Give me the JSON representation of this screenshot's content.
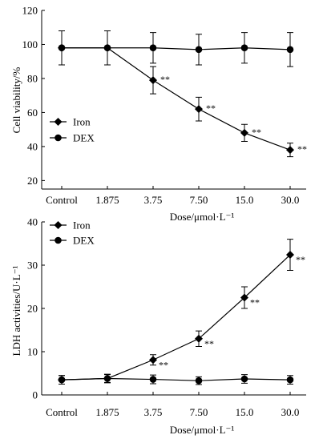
{
  "chart_data": [
    {
      "type": "line",
      "categories": [
        "Control",
        "1.875",
        "3.75",
        "7.50",
        "15.0",
        "30.0"
      ],
      "series": [
        {
          "name": "Iron",
          "marker": "diamond",
          "color": "#000000",
          "values": [
            98,
            98,
            79,
            62,
            48,
            38
          ],
          "errors": [
            10,
            10,
            8,
            7,
            5,
            4
          ]
        },
        {
          "name": "DEX",
          "marker": "circle",
          "color": "#000000",
          "values": [
            98,
            98,
            98,
            97,
            98,
            97
          ],
          "errors": [
            10,
            10,
            9,
            9,
            9,
            10
          ]
        }
      ],
      "xlabel": "Dose/μmol·L⁻¹",
      "ylabel": "Cell viability/%",
      "ylim": [
        15,
        120
      ],
      "yticks": [
        20,
        40,
        60,
        80,
        100,
        120
      ],
      "grid": false,
      "legend": "lower-left",
      "annotations": [
        {
          "series": 0,
          "point": 2,
          "text": "**"
        },
        {
          "series": 0,
          "point": 3,
          "text": "**"
        },
        {
          "series": 0,
          "point": 4,
          "text": "**"
        },
        {
          "series": 0,
          "point": 5,
          "text": "**"
        }
      ]
    },
    {
      "type": "line",
      "categories": [
        "Control",
        "1.875",
        "3.75",
        "7.50",
        "15.0",
        "30.0"
      ],
      "series": [
        {
          "name": "Iron",
          "marker": "diamond",
          "color": "#000000",
          "values": [
            3.5,
            3.8,
            8.1,
            13.0,
            22.5,
            32.4
          ],
          "errors": [
            1.0,
            1.0,
            1.2,
            1.8,
            2.5,
            3.6
          ]
        },
        {
          "name": "DEX",
          "marker": "circle",
          "color": "#000000",
          "values": [
            3.5,
            3.8,
            3.6,
            3.3,
            3.7,
            3.5
          ],
          "errors": [
            1.0,
            0.9,
            1.0,
            0.9,
            1.0,
            1.0
          ]
        }
      ],
      "xlabel": "Dose/μmol·L⁻¹",
      "ylabel": "LDH activities/U·L⁻¹",
      "ylim": [
        0,
        40
      ],
      "yticks": [
        0,
        10,
        20,
        30,
        40
      ],
      "grid": false,
      "legend": "upper-left",
      "annotations": [
        {
          "series": 0,
          "point": 2,
          "text": "**"
        },
        {
          "series": 0,
          "point": 3,
          "text": "**"
        },
        {
          "series": 0,
          "point": 4,
          "text": "**"
        },
        {
          "series": 0,
          "point": 5,
          "text": "**"
        }
      ]
    }
  ]
}
